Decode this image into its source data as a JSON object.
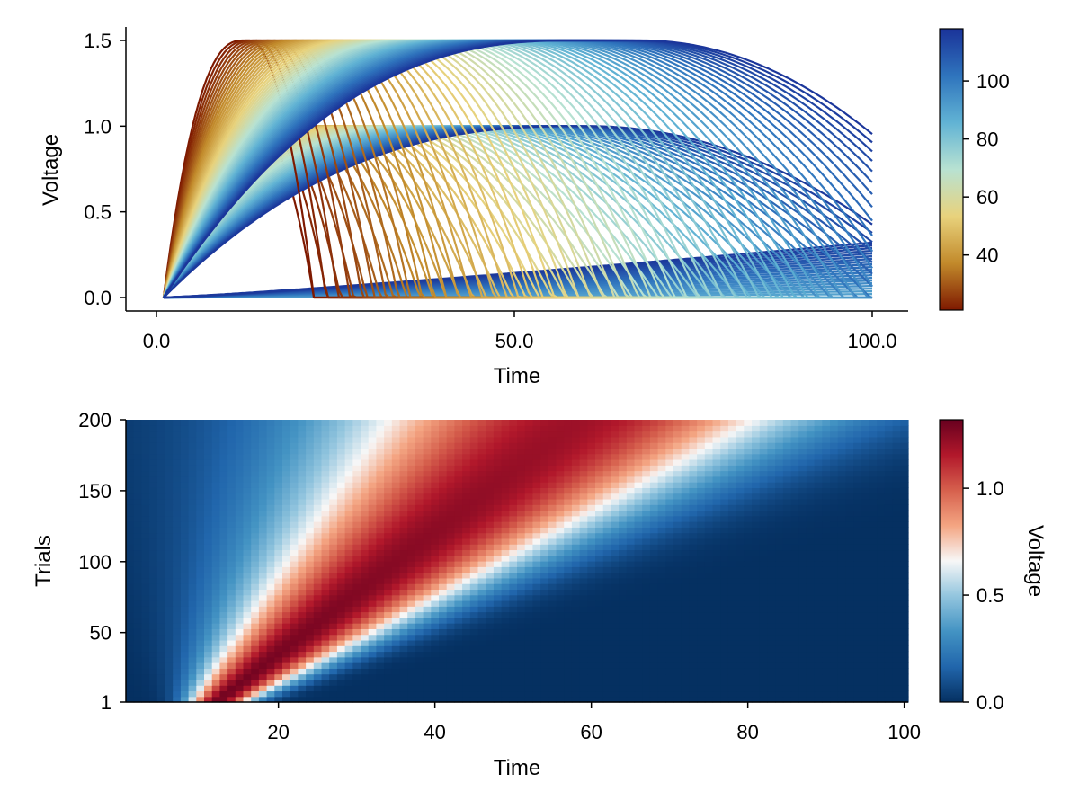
{
  "chart_data": [
    {
      "type": "line",
      "xlabel": "Time",
      "ylabel": "Voltage",
      "xlim": [
        0,
        100
      ],
      "ylim": [
        -0.05,
        1.58
      ],
      "xticks": [
        "0.0",
        "50.0",
        "100.0"
      ],
      "yticks": [
        "0.0",
        "0.5",
        "1.0",
        "1.5"
      ],
      "colormap": "roma",
      "color_variable": "trial",
      "colorbar": {
        "ticks": [
          "40",
          "60",
          "80",
          "100"
        ],
        "range": [
          21,
          118
        ]
      },
      "series_description": "Three families of voltage traces: rising curves saturating at 1.5, rising curves saturating at 1.0, and slowly rising curves reaching about 0.3 at Time 100; each trace colored by trial value.",
      "families": [
        {
          "plateau": 1.5,
          "peak_time_range": [
            12,
            58
          ]
        },
        {
          "plateau": 1.0,
          "peak_time_range": [
            38,
            62
          ]
        },
        {
          "plateau": 0.3,
          "peak_time_range": [
            100,
            100
          ]
        }
      ]
    },
    {
      "type": "heatmap",
      "xlabel": "Time",
      "ylabel": "Trials",
      "xlim": [
        1,
        100
      ],
      "ylim": [
        1,
        200
      ],
      "xticks": [
        "20",
        "40",
        "60",
        "80",
        "100"
      ],
      "yticks": [
        "1",
        "50",
        "100",
        "150",
        "200"
      ],
      "colormap": "RdBu reversed",
      "colorbar": {
        "label": "Voltage",
        "ticks": [
          "0.0",
          "0.5",
          "1.0"
        ],
        "range": [
          0,
          1.32
        ]
      },
      "series_description": "Voltage per trial (row) and time (column): a red ridge peaking near 1.3 that shifts from Time ~12 at Trial 1 to Time ~58 at Trial 200, with dark blue (0.0) below/right of the ridge."
    }
  ],
  "colors": {
    "roma": [
      "#7e1900",
      "#c28a2b",
      "#e8d27c",
      "#b8e2d2",
      "#61b3d4",
      "#2f74bd",
      "#1a3399"
    ],
    "rdbu": [
      "#053061",
      "#2166ac",
      "#4393c3",
      "#92c5de",
      "#f7f7f7",
      "#f4a582",
      "#d6604d",
      "#b2182b",
      "#67001f"
    ]
  }
}
